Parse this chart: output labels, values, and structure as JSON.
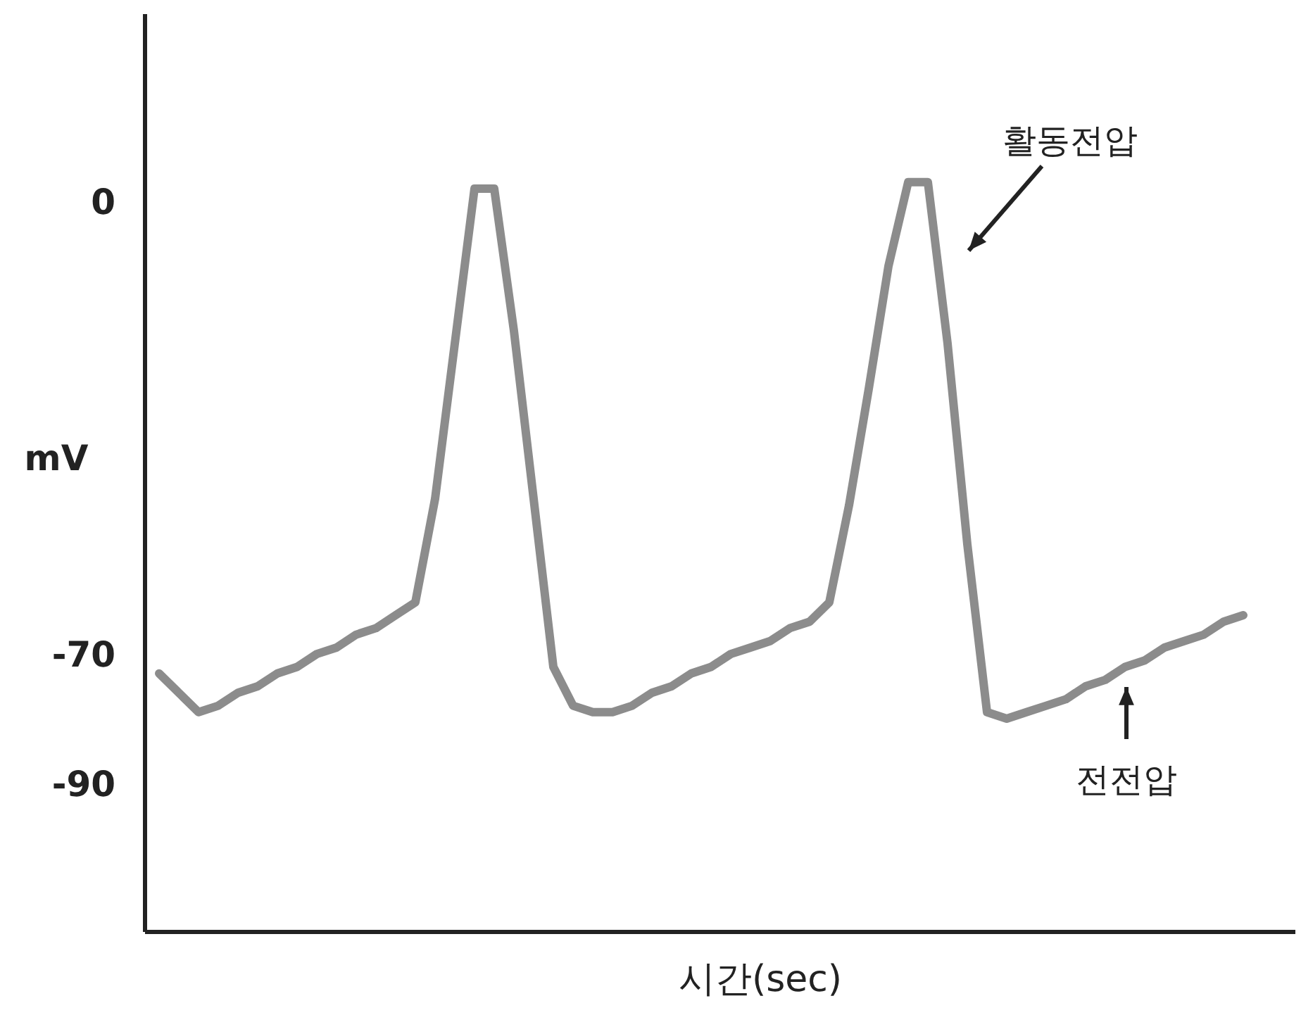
{
  "chart_data": {
    "type": "line",
    "ylabel": "mV",
    "xlabel": "시간(sec)",
    "annotations": [
      "활동전압",
      "전전압"
    ],
    "color": "#8c8c8c",
    "ylim": [
      -113,
      29
    ],
    "yticks": [
      0,
      -70,
      -90
    ],
    "tick_labels": "y",
    "marker": "none",
    "categories": [
      null,
      null,
      null,
      null,
      null,
      null,
      null,
      null,
      null,
      null,
      null,
      null,
      null,
      null,
      null,
      null,
      null,
      null,
      null,
      null,
      null,
      null,
      null,
      null,
      null,
      null,
      null,
      null,
      null,
      null,
      null,
      null,
      null,
      null,
      null,
      null,
      null,
      null,
      null,
      null,
      null,
      null,
      null,
      null,
      null,
      null,
      null,
      null,
      null,
      null,
      null,
      null,
      null,
      null,
      null,
      null
    ],
    "values": [
      -73,
      -76,
      -79,
      -78,
      -76,
      -75,
      -73,
      -72,
      -70,
      -69,
      -67,
      -66,
      -64,
      -62,
      -46,
      -22,
      2,
      2,
      -20,
      -46,
      -72,
      -78,
      -79,
      -79,
      -78,
      -76,
      -75,
      -73,
      -72,
      -70,
      -69,
      -68,
      -66,
      -65,
      -62,
      -47,
      -29,
      -10,
      3,
      3,
      -22,
      -53,
      -79,
      -80,
      -79,
      -78,
      -77,
      -75,
      -74,
      -72,
      -71,
      -69,
      -68,
      -67,
      -65,
      -64
    ]
  }
}
